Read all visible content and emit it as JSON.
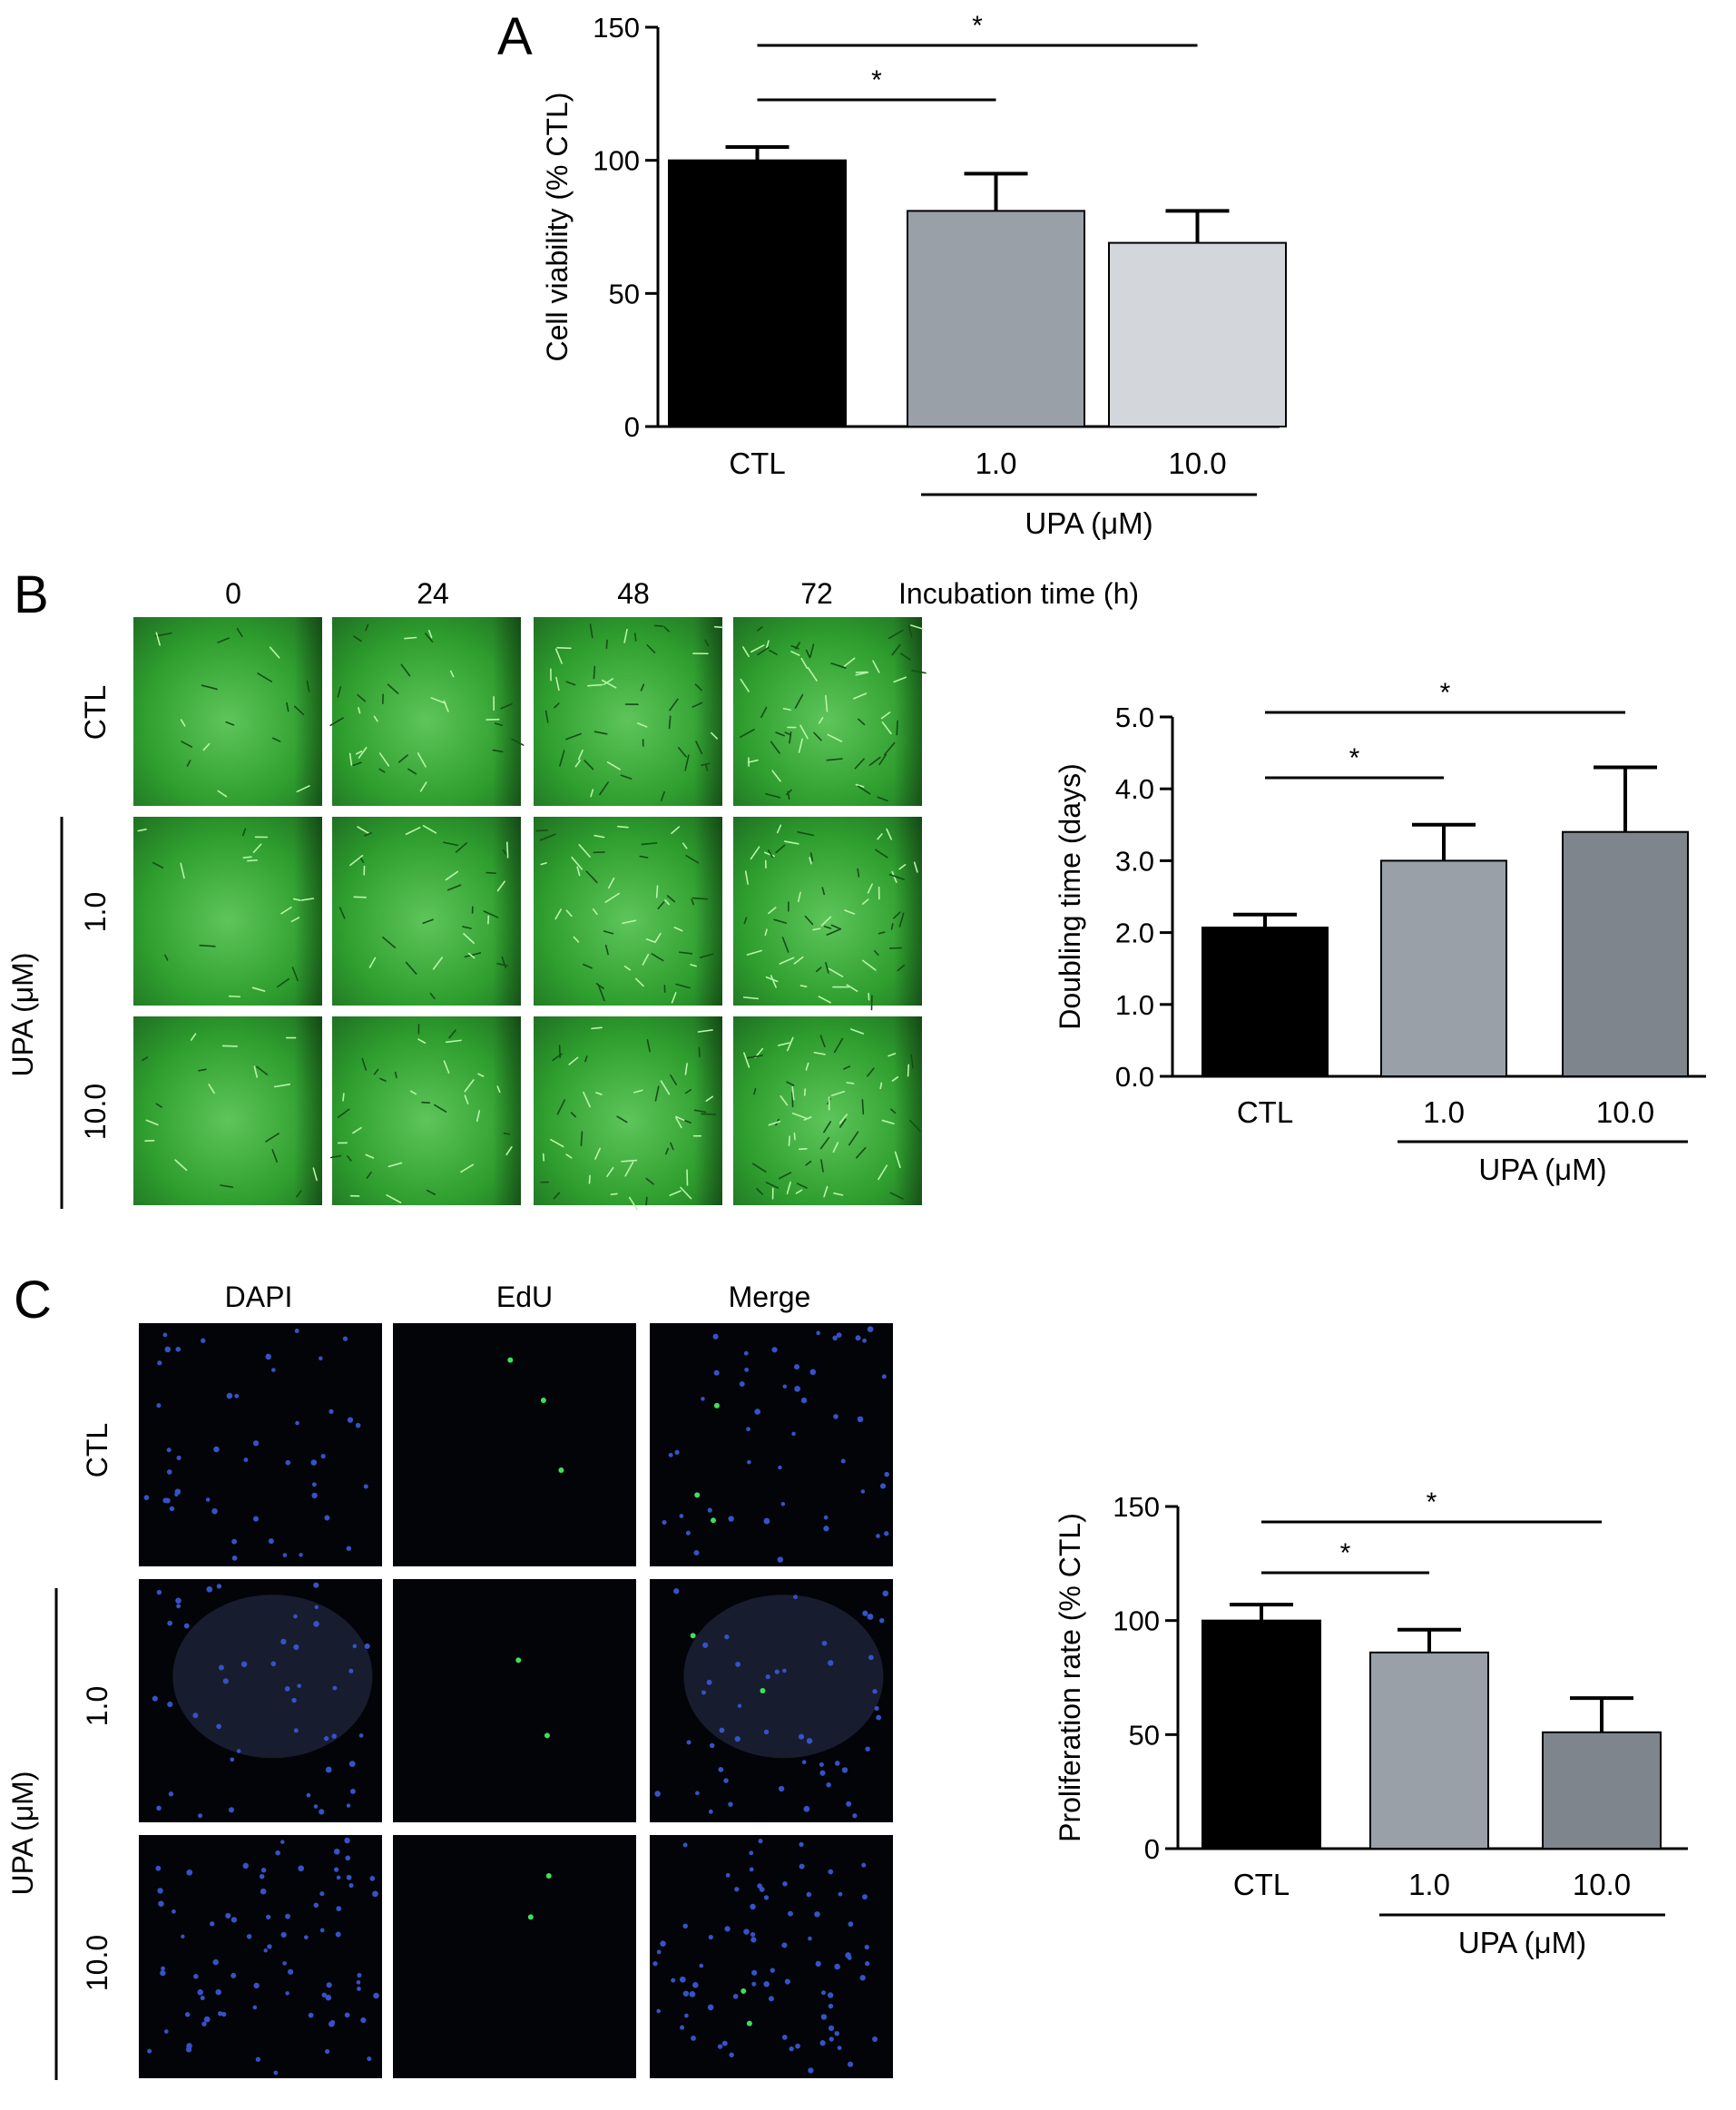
{
  "panels": {
    "A": {
      "letter": "A"
    },
    "B": {
      "letter": "B",
      "time_points": [
        "0",
        "24",
        "48",
        "72"
      ],
      "time_axis_label": "Incubation time (h)",
      "row_labels": [
        "CTL",
        "1.0",
        "10.0"
      ],
      "group_label": "UPA (μM)"
    },
    "C": {
      "letter": "C",
      "channels": [
        "DAPI",
        "EdU",
        "Merge"
      ],
      "row_labels": [
        "CTL",
        "1.0",
        "10.0"
      ],
      "group_label": "UPA (μM)"
    }
  },
  "colors": {
    "bar_black": "#000000",
    "bar_mid_gray": "#9aa0a8",
    "bar_light_gray": "#d3d6db",
    "bar_dark_gray": "#7f858c",
    "brightfield_green": "#2e9e2e",
    "fluorescence_bg": "#030408",
    "dapi_blue": "#3552c8",
    "edu_green": "#3ee05a"
  },
  "chart_data": [
    {
      "id": "A",
      "type": "bar",
      "categories": [
        "CTL",
        "1.0",
        "10.0"
      ],
      "values": [
        100,
        81,
        69
      ],
      "errors": [
        5,
        14,
        12
      ],
      "ylabel": "Cell viability (% CTL)",
      "ylim": [
        0,
        150
      ],
      "yticks": [
        "0",
        "50",
        "100",
        "150"
      ],
      "group_label": "UPA (μM)",
      "significance": [
        {
          "from": "CTL",
          "to": "1.0",
          "label": "*"
        },
        {
          "from": "CTL",
          "to": "10.0",
          "label": "*"
        }
      ]
    },
    {
      "id": "B",
      "type": "bar",
      "categories": [
        "CTL",
        "1.0",
        "10.0"
      ],
      "values": [
        2.07,
        3.0,
        3.4
      ],
      "errors": [
        0.18,
        0.5,
        0.9
      ],
      "ylabel": "Doubling time (days)",
      "ylim": [
        0,
        5
      ],
      "yticks": [
        "0.0",
        "1.0",
        "2.0",
        "3.0",
        "4.0",
        "5.0"
      ],
      "group_label": "UPA (μM)",
      "significance": [
        {
          "from": "CTL",
          "to": "1.0",
          "label": "*"
        },
        {
          "from": "CTL",
          "to": "10.0",
          "label": "*"
        }
      ]
    },
    {
      "id": "C",
      "type": "bar",
      "categories": [
        "CTL",
        "1.0",
        "10.0"
      ],
      "values": [
        100,
        86,
        51
      ],
      "errors": [
        7,
        10,
        15
      ],
      "ylabel": "Proliferation rate (% CTL)",
      "ylim": [
        0,
        150
      ],
      "yticks": [
        "0",
        "50",
        "100",
        "150"
      ],
      "group_label": "UPA (μM)",
      "significance": [
        {
          "from": "CTL",
          "to": "1.0",
          "label": "*"
        },
        {
          "from": "CTL",
          "to": "10.0",
          "label": "*"
        }
      ]
    }
  ]
}
